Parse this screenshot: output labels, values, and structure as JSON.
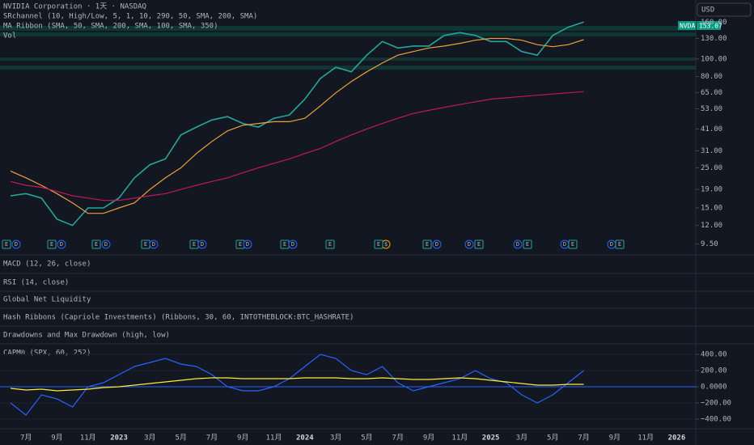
{
  "header": {
    "title": "NVIDIA Corporation · 1天 · NASDAQ",
    "indicators": [
      "SRchannel (10, High/Low, 5, 1, 10, 290, 50, SMA, 200, SMA)",
      "MA Ribbon (SMA, 50, SMA, 200, SMA, 100, SMA, 350)",
      "Vol"
    ],
    "currency": "USD",
    "symbol_tag": "NVDA",
    "last_price": "153.07",
    "events": [
      "E",
      "D",
      "E",
      "D",
      "E",
      "D",
      "E",
      "D",
      "E",
      "D",
      "E",
      "D",
      "E",
      "D",
      "E",
      "$",
      "E",
      "D",
      "E",
      "D",
      "E",
      "D",
      "E",
      "D",
      "E",
      "D",
      "E"
    ]
  },
  "panes": [
    "MACD (12, 26, close)",
    "RSI (14, close)",
    "Global Net Liquidity",
    "Hash Ribbons (Capriole Investments) (Ribbons, 30, 60, INTOTHEBLOCK:BTC_HASHRATE)",
    "Drawdowns and Max Drawdown (high, low)",
    "CAPM® (SPX, 60, 252)"
  ],
  "chart_data": [
    {
      "type": "line",
      "log_scale": true,
      "grid": false,
      "categories": [
        null,
        "7月",
        null,
        "9月",
        null,
        "11月",
        null,
        "2023",
        null,
        "3月",
        null,
        "5月",
        null,
        "7月",
        null,
        "9月",
        null,
        "11月",
        null,
        "2024",
        null,
        "3月",
        null,
        "5月",
        null,
        "7月",
        null,
        "9月",
        null,
        "11月",
        null,
        "2025",
        null,
        "3月",
        null,
        "5月",
        null,
        "7月",
        null,
        "9月",
        null,
        "11月",
        null,
        "2026"
      ],
      "ylim": [
        8.25,
        212
      ],
      "yticks": [
        {
          "value": 160,
          "label": "160.00"
        },
        {
          "value": 130,
          "label": "130.00"
        },
        {
          "value": 100,
          "label": "100.00"
        },
        {
          "value": 80,
          "label": "80.00"
        },
        {
          "value": 65,
          "label": "65.00"
        },
        {
          "value": 53,
          "label": "53.00"
        },
        {
          "value": 41,
          "label": "41.00"
        },
        {
          "value": 31,
          "label": "31.00"
        },
        {
          "value": 25,
          "label": "25.00"
        },
        {
          "value": 19,
          "label": "19.00"
        },
        {
          "value": 15,
          "label": "15.00"
        },
        {
          "value": 12,
          "label": "12.00"
        },
        {
          "value": 9.5,
          "label": "9.50"
        }
      ],
      "series": [
        {
          "color": "#26a69a",
          "values": [
            17.5,
            18,
            17,
            13,
            12,
            15,
            15,
            17,
            22,
            26,
            28,
            38,
            42,
            46,
            48,
            44,
            42,
            47,
            49,
            60,
            78,
            90,
            85,
            105,
            125,
            115,
            118,
            118,
            135,
            140,
            135,
            125,
            125,
            110,
            105,
            135,
            150,
            160,
            null,
            null,
            null,
            null,
            null,
            null
          ]
        },
        {
          "color": "#e9a23b",
          "values": [
            24,
            22,
            20,
            18,
            16,
            14,
            14,
            15,
            16,
            19,
            22,
            25,
            30,
            35,
            40,
            43,
            44,
            45,
            45,
            47,
            55,
            65,
            75,
            85,
            95,
            105,
            110,
            115,
            118,
            122,
            127,
            130,
            130,
            127,
            120,
            117,
            120,
            128,
            null,
            null,
            null,
            null,
            null,
            null
          ]
        },
        {
          "color": "#c2185b",
          "values": [
            21,
            20,
            19.5,
            18.5,
            17.5,
            17,
            16.5,
            16.5,
            17,
            17.5,
            18,
            19,
            20,
            21,
            22,
            23.5,
            25,
            26.5,
            28,
            30,
            32,
            35,
            38,
            41,
            44,
            47,
            50,
            52,
            54,
            56,
            58,
            60,
            61,
            62,
            63,
            64,
            65,
            66,
            null,
            null,
            null,
            null,
            null,
            null
          ]
        }
      ]
    },
    {
      "type": "line",
      "ylim": [
        -520,
        500
      ],
      "yticks": [
        {
          "value": 400,
          "label": "400.00"
        },
        {
          "value": 200,
          "label": "200.00"
        },
        {
          "value": 0,
          "label": "0.0000"
        },
        {
          "value": -200,
          "label": "−200.00"
        },
        {
          "value": -400,
          "label": "−400.00"
        }
      ],
      "series": [
        {
          "color": "#2962ff",
          "values": [
            -200,
            -350,
            -100,
            -150,
            -250,
            0,
            50,
            150,
            250,
            300,
            350,
            280,
            250,
            150,
            0,
            -50,
            -50,
            0,
            100,
            250,
            400,
            350,
            200,
            150,
            250,
            50,
            -50,
            0,
            50,
            100,
            200,
            100,
            50,
            -100,
            -200,
            -100,
            50,
            200,
            null,
            null,
            null,
            null,
            null,
            null
          ]
        },
        {
          "color": "#ffeb3b",
          "values": [
            -20,
            -40,
            -30,
            -50,
            -40,
            -30,
            -10,
            0,
            20,
            40,
            60,
            80,
            100,
            110,
            110,
            100,
            100,
            100,
            100,
            110,
            110,
            110,
            100,
            100,
            110,
            100,
            90,
            90,
            100,
            110,
            100,
            80,
            60,
            40,
            20,
            20,
            30,
            30,
            null,
            null,
            null,
            null,
            null,
            null
          ]
        }
      ]
    }
  ]
}
